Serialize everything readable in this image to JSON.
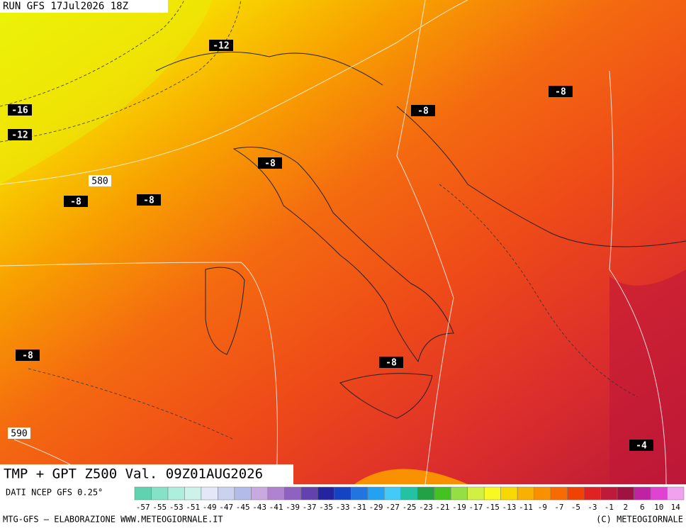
{
  "header": {
    "run": "RUN GFS 17Jul2026 18Z"
  },
  "map": {
    "field_title": "TMP + GPT Z500 Val. 09Z01AUG2026",
    "temperature_labels": [
      "-12",
      "-16",
      "-12",
      "-8",
      "-8",
      "-8",
      "-8",
      "-8",
      "-8",
      "-8",
      "-4"
    ],
    "height_labels": [
      "580",
      "590"
    ]
  },
  "legend": {
    "source": "DATI NCEP GFS 0.25°",
    "values": [
      -57,
      -55,
      -53,
      -51,
      -49,
      -47,
      -45,
      -43,
      -41,
      -39,
      -37,
      -35,
      -33,
      -31,
      -29,
      -27,
      -25,
      -23,
      -21,
      -19,
      -17,
      -15,
      -13,
      -11,
      -9,
      -7,
      -5,
      -3,
      -1,
      2,
      6,
      10,
      14
    ],
    "colors": [
      "#5fd3b0",
      "#86e2c6",
      "#aeeedc",
      "#cdf2ea",
      "#e2e8f8",
      "#cad2f0",
      "#b3bbe8",
      "#c9a9e0",
      "#b083d0",
      "#9062c0",
      "#6342b0",
      "#2424a0",
      "#1444c2",
      "#2274e0",
      "#22a2f0",
      "#44caf8",
      "#22c2a2",
      "#22a244",
      "#44c222",
      "#94e044",
      "#d2f044",
      "#f8f822",
      "#f8d802",
      "#f8b002",
      "#f89002",
      "#f86a02",
      "#f04202",
      "#e02222",
      "#c01a3a",
      "#a01242",
      "#c022a2",
      "#e042d2",
      "#f0a2f0"
    ]
  },
  "footer": {
    "left": "MTG-GFS – ELABORAZIONE WWW.METEOGIORNALE.IT",
    "right": "(C) METEOGIORNALE"
  }
}
